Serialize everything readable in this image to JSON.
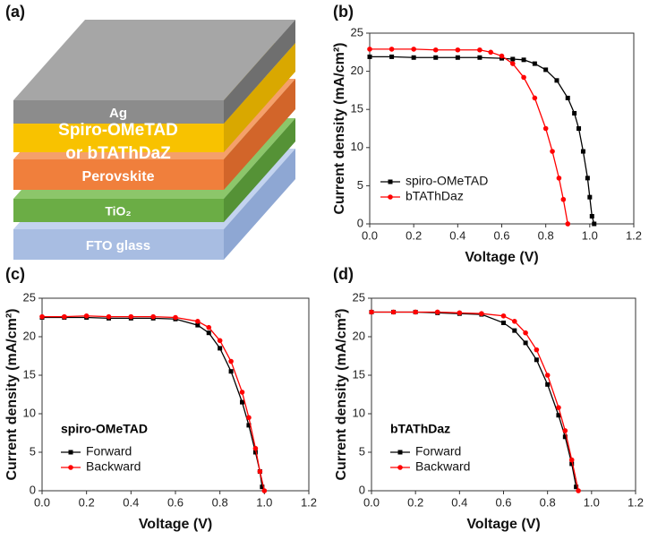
{
  "diagram": {
    "panel_label": "(a)",
    "layers": [
      {
        "label": "FTO glass"
      },
      {
        "label": "TiO₂"
      },
      {
        "label": "Perovskite"
      },
      {
        "label": "Spiro-OMeTAD",
        "label2": "or bTAThDaZ"
      },
      {
        "label": "Ag"
      }
    ]
  },
  "chart_data": [
    {
      "type": "line",
      "panel_label": "(b)",
      "x_label": "Voltage (V)",
      "y_label": "Current density (mA/cm²)",
      "xlim": [
        0,
        1.2
      ],
      "xticks": [
        {
          "value": 0,
          "label": "0.0"
        },
        0.2,
        0.4,
        0.6,
        0.8,
        {
          "value": 1,
          "label": "1.0"
        },
        1.2
      ],
      "ylim": [
        0,
        25
      ],
      "yticks": [
        0,
        5,
        10,
        15,
        20,
        25
      ],
      "legend": "lower left",
      "series": [
        {
          "name": "spiro-OMeTAD",
          "color": "#000000",
          "marker": "square",
          "x": [
            0,
            0.1,
            0.2,
            0.3,
            0.4,
            0.5,
            0.6,
            0.65,
            0.7,
            0.75,
            0.8,
            0.85,
            0.9,
            0.93,
            0.95,
            0.97,
            0.99,
            1.0,
            1.01,
            1.02
          ],
          "values": [
            21.9,
            21.9,
            21.8,
            21.8,
            21.8,
            21.8,
            21.7,
            21.6,
            21.5,
            21.0,
            20.2,
            18.8,
            16.5,
            14.5,
            12.5,
            9.5,
            6,
            3.5,
            1,
            0
          ]
        },
        {
          "name": "bTAThDaz",
          "color": "#ff0000",
          "marker": "circle",
          "x": [
            0,
            0.1,
            0.2,
            0.3,
            0.4,
            0.5,
            0.55,
            0.6,
            0.65,
            0.7,
            0.75,
            0.8,
            0.83,
            0.86,
            0.88,
            0.9
          ],
          "values": [
            22.9,
            22.9,
            22.9,
            22.8,
            22.8,
            22.8,
            22.5,
            22.0,
            21.0,
            19.2,
            16.5,
            12.5,
            9.5,
            6,
            3.2,
            0
          ]
        }
      ]
    },
    {
      "type": "line",
      "panel_label": "(c)",
      "x_label": "Voltage (V)",
      "y_label": "Current density (mA/cm²)",
      "xlim": [
        0,
        1.2
      ],
      "xticks": [
        {
          "value": 0,
          "label": "0.0"
        },
        0.2,
        0.4,
        0.6,
        0.8,
        {
          "value": 1,
          "label": "1.0"
        },
        1.2
      ],
      "ylim": [
        0,
        25
      ],
      "yticks": [
        0,
        5,
        10,
        15,
        20,
        25
      ],
      "legend": "lower left",
      "legend_title": "spiro-OMeTAD",
      "series": [
        {
          "name": "Forward",
          "color": "#000000",
          "marker": "square",
          "x": [
            0,
            0.1,
            0.2,
            0.3,
            0.4,
            0.5,
            0.6,
            0.7,
            0.75,
            0.8,
            0.85,
            0.9,
            0.93,
            0.96,
            0.98,
            0.99
          ],
          "values": [
            22.5,
            22.5,
            22.5,
            22.4,
            22.4,
            22.4,
            22.3,
            21.5,
            20.5,
            18.5,
            15.5,
            11.5,
            8.5,
            5,
            2.5,
            0.5
          ]
        },
        {
          "name": "Backward",
          "color": "#ff0000",
          "marker": "circle",
          "x": [
            0,
            0.1,
            0.2,
            0.3,
            0.4,
            0.5,
            0.6,
            0.7,
            0.75,
            0.8,
            0.85,
            0.9,
            0.93,
            0.96,
            0.98,
            1.0
          ],
          "values": [
            22.6,
            22.6,
            22.7,
            22.6,
            22.6,
            22.6,
            22.5,
            22.0,
            21.2,
            19.5,
            16.8,
            12.8,
            9.5,
            5.5,
            2.5,
            0
          ]
        }
      ]
    },
    {
      "type": "line",
      "panel_label": "(d)",
      "x_label": "Voltage (V)",
      "y_label": "Current density (mA/cm²)",
      "xlim": [
        0,
        1.2
      ],
      "xticks": [
        {
          "value": 0,
          "label": "0.0"
        },
        0.2,
        0.4,
        0.6,
        0.8,
        {
          "value": 1,
          "label": "1.0"
        },
        1.2
      ],
      "ylim": [
        0,
        25
      ],
      "yticks": [
        0,
        5,
        10,
        15,
        20,
        25
      ],
      "legend": "lower left",
      "legend_title": "bTAThDaz",
      "series": [
        {
          "name": "Forward",
          "color": "#000000",
          "marker": "square",
          "x": [
            0,
            0.1,
            0.2,
            0.3,
            0.4,
            0.5,
            0.6,
            0.65,
            0.7,
            0.75,
            0.8,
            0.85,
            0.88,
            0.91,
            0.93
          ],
          "values": [
            23.2,
            23.2,
            23.2,
            23.1,
            23.0,
            22.9,
            21.8,
            20.8,
            19.2,
            17.0,
            13.8,
            9.8,
            7,
            3.5,
            0.5
          ]
        },
        {
          "name": "Backward",
          "color": "#ff0000",
          "marker": "circle",
          "x": [
            0,
            0.1,
            0.2,
            0.3,
            0.4,
            0.5,
            0.6,
            0.65,
            0.7,
            0.75,
            0.8,
            0.85,
            0.88,
            0.91,
            0.94
          ],
          "values": [
            23.2,
            23.2,
            23.2,
            23.2,
            23.1,
            23.0,
            22.7,
            22.0,
            20.5,
            18.3,
            15,
            10.8,
            7.8,
            4,
            0
          ]
        }
      ]
    }
  ]
}
